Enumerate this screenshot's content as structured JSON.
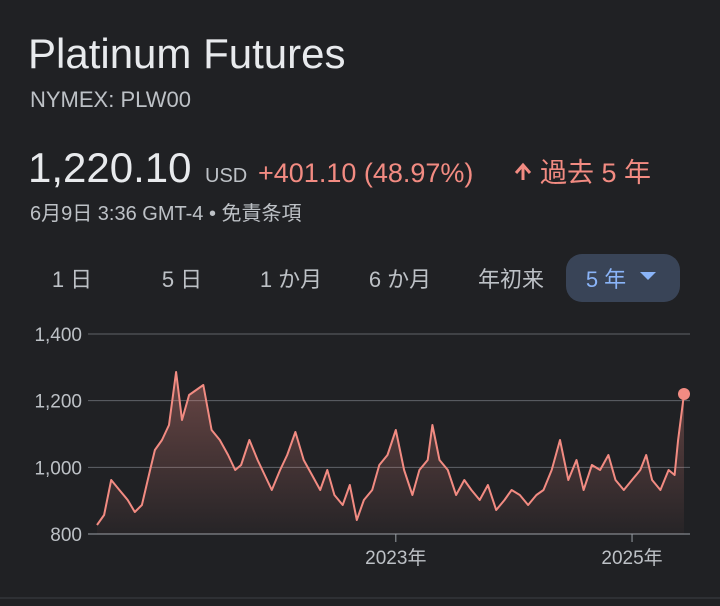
{
  "header": {
    "title": "Platinum Futures",
    "exchange": "NYMEX: PLW00",
    "price": "1,220.10",
    "currency": "USD",
    "change": "+401.10 (48.97%)",
    "period": "過去 5 年",
    "timestamp": "6月9日 3:36 GMT-4 • ",
    "disclaimer": "免責条項"
  },
  "tabs": [
    "1 日",
    "5 日",
    "1 か月",
    "6 か月",
    "年初来",
    "5 年"
  ],
  "selected_tab": 5,
  "chart_data": {
    "type": "line",
    "color": "#f28b82",
    "grid": true,
    "x": [
      2020.47,
      2020.53,
      2020.59,
      2020.66,
      2020.73,
      2020.79,
      2020.85,
      2020.92,
      2020.96,
      2021.02,
      2021.08,
      2021.14,
      2021.19,
      2021.25,
      2021.31,
      2021.37,
      2021.44,
      2021.51,
      2021.58,
      2021.64,
      2021.69,
      2021.76,
      2021.83,
      2021.89,
      2021.95,
      2022.02,
      2022.08,
      2022.15,
      2022.22,
      2022.29,
      2022.36,
      2022.42,
      2022.48,
      2022.55,
      2022.61,
      2022.67,
      2022.73,
      2022.8,
      2022.86,
      2022.93,
      2023.0,
      2023.07,
      2023.14,
      2023.2,
      2023.27,
      2023.31,
      2023.37,
      2023.44,
      2023.51,
      2023.58,
      2023.64,
      2023.71,
      2023.78,
      2023.85,
      2023.92,
      2023.98,
      2024.05,
      2024.12,
      2024.19,
      2024.25,
      2024.32,
      2024.39,
      2024.46,
      2024.53,
      2024.59,
      2024.66,
      2024.73,
      2024.8,
      2024.86,
      2024.93,
      2025.0,
      2025.07,
      2025.12,
      2025.17,
      2025.24,
      2025.31,
      2025.36,
      2025.39,
      2025.44
    ],
    "values": [
      827,
      857,
      962,
      932,
      902,
      866,
      887,
      992,
      1052,
      1082,
      1127,
      1286,
      1142,
      1217,
      1232,
      1247,
      1112,
      1082,
      1037,
      992,
      1007,
      1082,
      1022,
      977,
      932,
      992,
      1037,
      1106,
      1022,
      977,
      932,
      992,
      917,
      887,
      947,
      842,
      902,
      932,
      1007,
      1037,
      1112,
      992,
      917,
      992,
      1022,
      1127,
      1022,
      992,
      917,
      962,
      932,
      902,
      947,
      872,
      902,
      932,
      917,
      887,
      917,
      932,
      992,
      1082,
      962,
      1022,
      932,
      1007,
      992,
      1037,
      962,
      932,
      962,
      992,
      1037,
      962,
      932,
      992,
      977,
      1082,
      1220.1
    ],
    "xlim": [
      2020.47,
      2025.44
    ],
    "xticks": [
      {
        "value": 2023,
        "label": "2023年"
      },
      {
        "value": 2025,
        "label": "2025年"
      }
    ],
    "ylim": [
      800,
      1400
    ],
    "yticks": [
      {
        "value": 800,
        "label": "800"
      },
      {
        "value": 1000,
        "label": "1,000"
      },
      {
        "value": 1200,
        "label": "1,200"
      },
      {
        "value": 1400,
        "label": "1,400"
      }
    ]
  }
}
